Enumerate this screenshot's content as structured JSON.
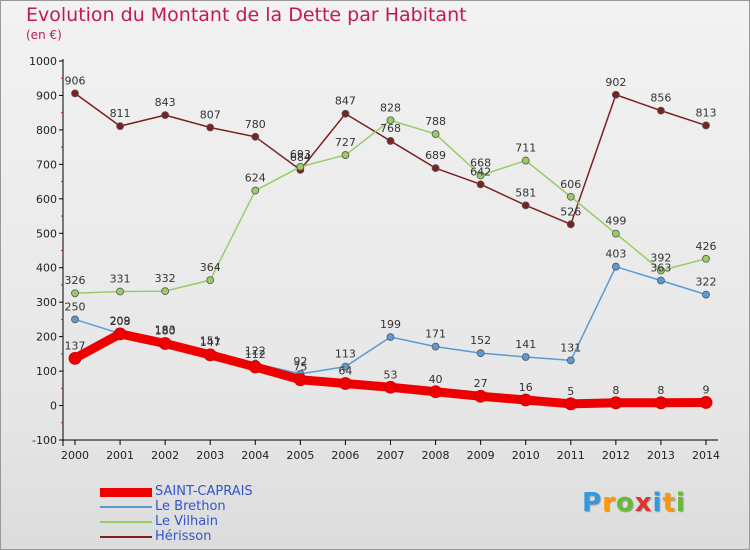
{
  "title": "Evolution du Montant de la Dette par Habitant",
  "subtitle": "(en €)",
  "chart_data": {
    "type": "line",
    "title": "Evolution du Montant de la Dette par Habitant",
    "ylabel": "(en €)",
    "x": [
      "2000",
      "2001",
      "2002",
      "2003",
      "2004",
      "2005",
      "2006",
      "2007",
      "2008",
      "2009",
      "2010",
      "2011",
      "2012",
      "2013",
      "2014"
    ],
    "ylim": [
      -100,
      1000
    ],
    "yticks": [
      -100,
      0,
      100,
      200,
      300,
      400,
      500,
      600,
      700,
      800,
      900,
      1000
    ],
    "grid": false,
    "legend_position": "bottom-left",
    "series": [
      {
        "name": "SAINT-CAPRAIS",
        "color": "#ee0000",
        "values": [
          137,
          208,
          180,
          147,
          112,
          75,
          64,
          53,
          40,
          27,
          16,
          5,
          8,
          8,
          9
        ],
        "labels": [
          "137",
          "208",
          "180",
          "147",
          "112",
          "75",
          "64",
          "53",
          "40",
          "27",
          "16",
          "5",
          "8",
          "8",
          "9"
        ]
      },
      {
        "name": "Le Brethon",
        "color": "#5b9bd5",
        "values": [
          250,
          209,
          183,
          151,
          122,
          92,
          113,
          199,
          171,
          152,
          141,
          131,
          403,
          363,
          322
        ],
        "labels": [
          "250",
          "209",
          "183",
          "151",
          "122",
          "92",
          "113",
          "199",
          "171",
          "152",
          "141",
          "131",
          "403",
          "363",
          "322"
        ]
      },
      {
        "name": "Le Vilhain",
        "color": "#99cc66",
        "values": [
          326,
          331,
          332,
          364,
          624,
          693,
          727,
          828,
          788,
          668,
          711,
          606,
          499,
          392,
          426
        ],
        "labels": [
          "326",
          "331",
          "332",
          "364",
          "624",
          "693",
          "727",
          "828",
          "788",
          "668",
          "711",
          "606",
          "499",
          "392",
          "426"
        ]
      },
      {
        "name": "Hérisson",
        "color": "#7a2222",
        "values": [
          906,
          811,
          843,
          807,
          780,
          684,
          847,
          768,
          689,
          642,
          581,
          526,
          902,
          856,
          813
        ],
        "labels": [
          "906",
          "811",
          "843",
          "807",
          "780",
          "684",
          "847",
          "768",
          "689",
          "642",
          "581",
          "526",
          "902",
          "856",
          "813"
        ]
      }
    ]
  },
  "logo": {
    "text": "Proxiti",
    "letters": [
      "P",
      "r",
      "o",
      "x",
      "i",
      "t",
      "i"
    ],
    "colors": [
      "#3399dd",
      "#ff9900",
      "#66bb33",
      "#dd3333",
      "#3399dd",
      "#ff9900",
      "#66bb33"
    ]
  }
}
